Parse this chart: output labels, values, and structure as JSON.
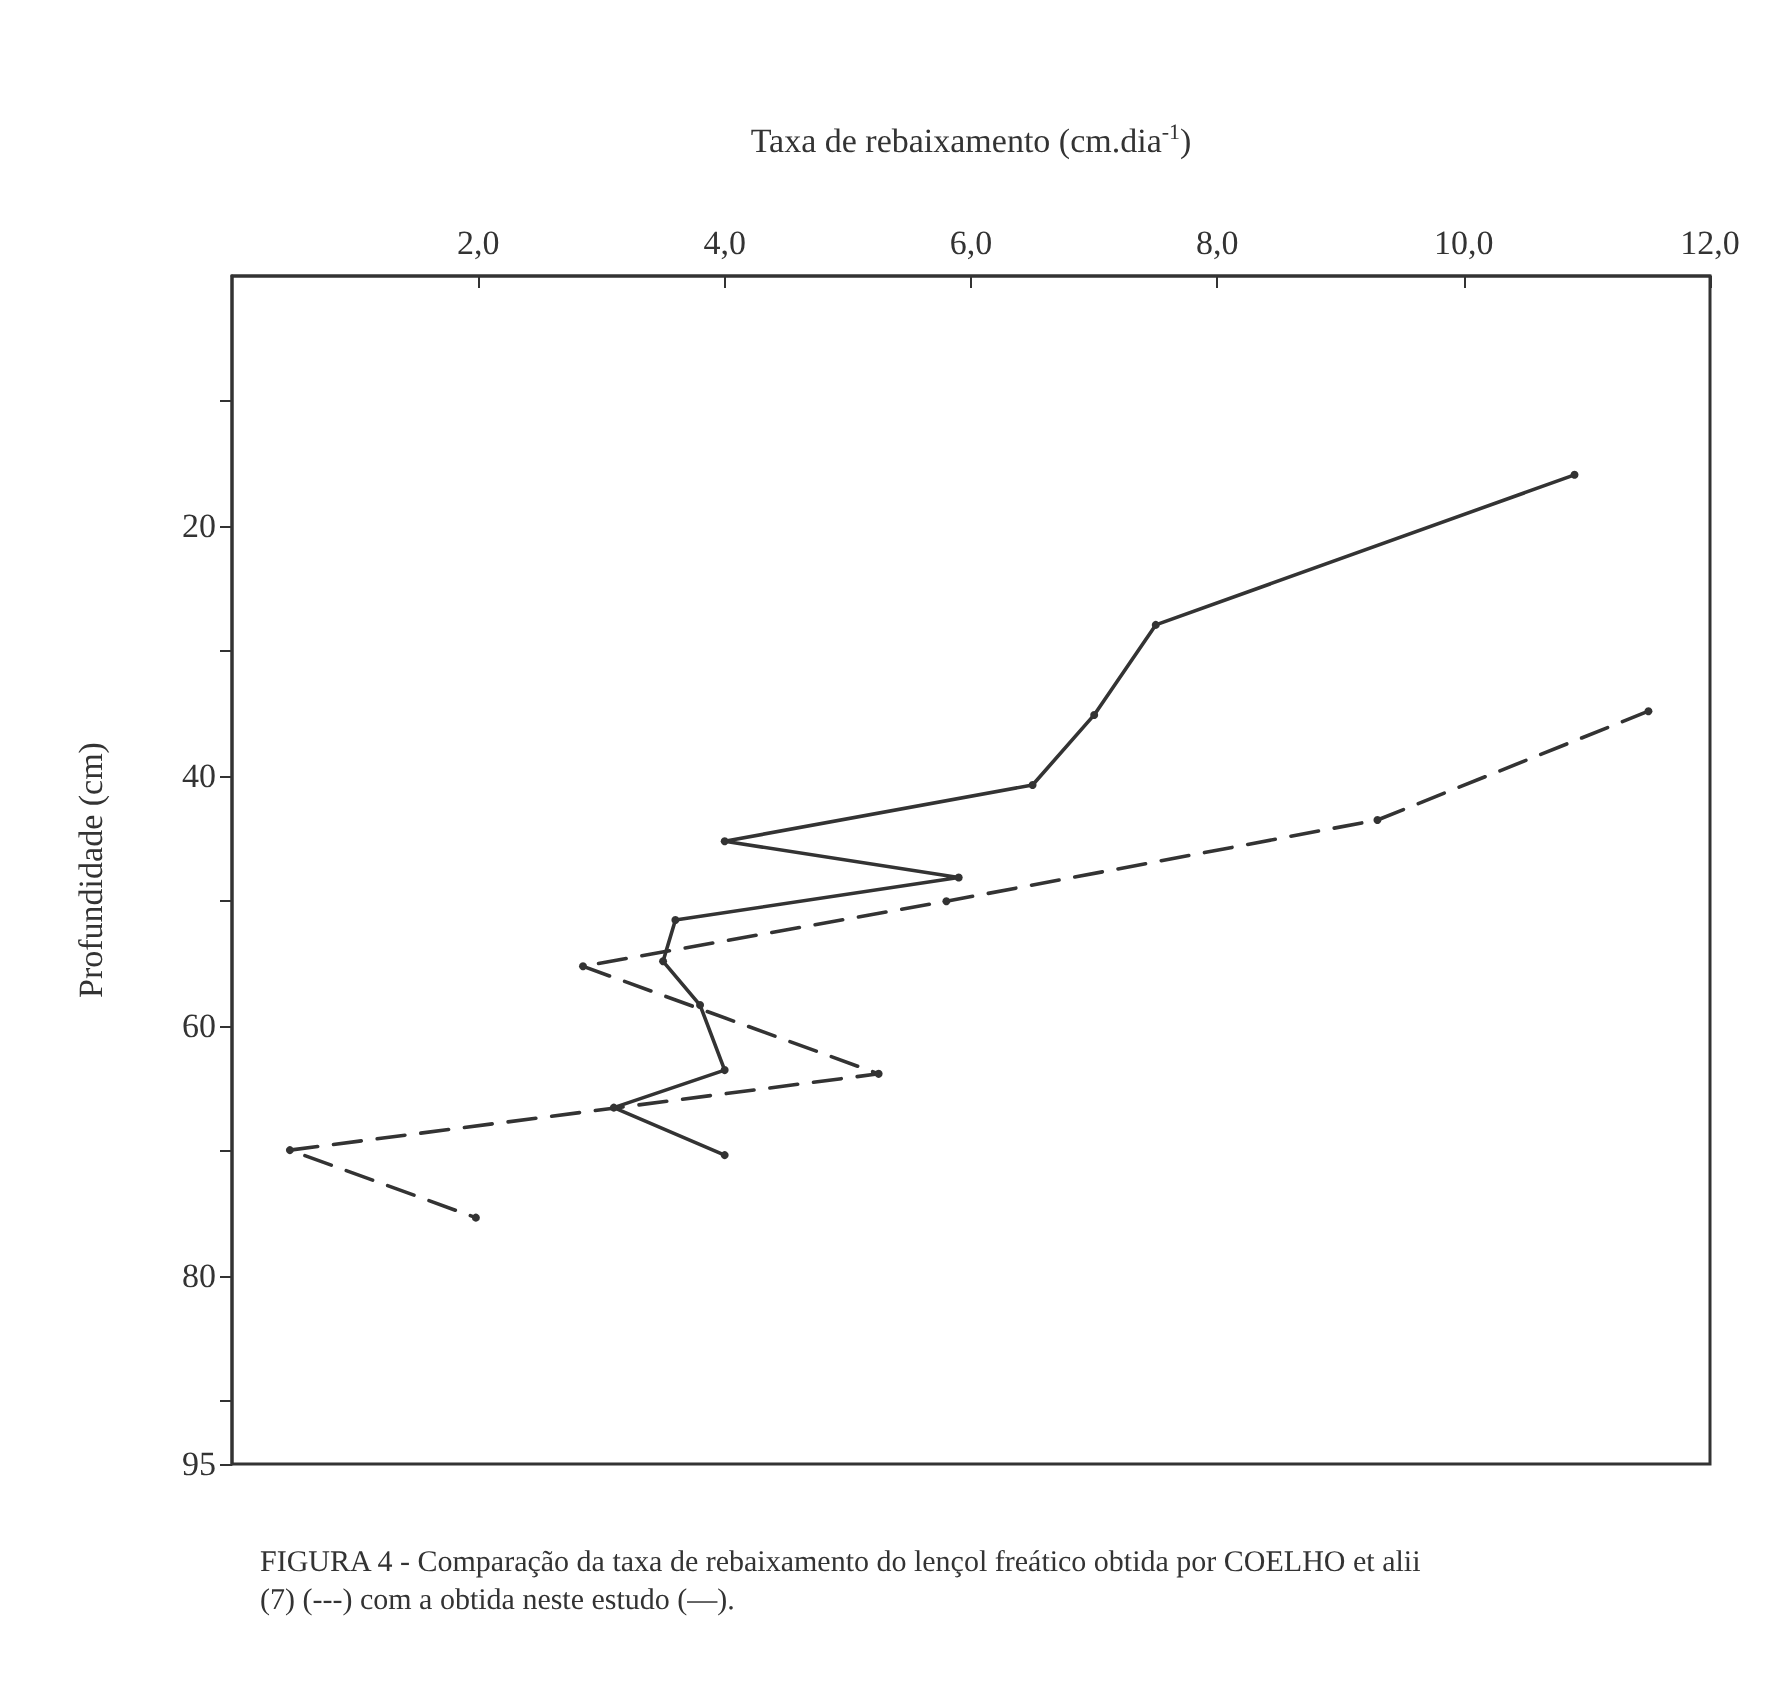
{
  "chart_data": {
    "type": "line",
    "xlabel": "Taxa de rebaixamento (cm.dia$^{-1}$)",
    "ylabel": "Profundidade (cm)",
    "annotations": [
      "FIGURA 4 - Comparação da taxa de rebaixamento do lençol freático obtida por COELHO et alii (7) (---) com a obtida neste estudo (—)."
    ],
    "xlim": [
      0,
      12
    ],
    "xticks": [
      {
        "value": 2,
        "label": "2,0"
      },
      {
        "value": 4,
        "label": "4,0"
      },
      {
        "value": 6,
        "label": "6,0"
      },
      {
        "value": 8,
        "label": "8,0"
      },
      {
        "value": 10,
        "label": "10,0"
      },
      {
        "value": 12,
        "label": "12,0"
      }
    ],
    "ylim": [
      95,
      0
    ],
    "yticks": [
      {
        "value": 10,
        "label": null
      },
      20,
      {
        "value": 30,
        "label": null
      },
      40,
      {
        "value": 50,
        "label": null
      },
      60,
      {
        "value": 70,
        "label": null
      },
      80,
      {
        "value": 90,
        "label": null
      },
      95
    ],
    "marker": "circle",
    "series": [
      {
        "color": "#333333",
        "line_style": "solid",
        "x": [
          10.9,
          7.5,
          7.0,
          6.5,
          4.0,
          5.9,
          3.6,
          3.5,
          3.8,
          4.0,
          3.1,
          4.0
        ],
        "values": [
          15.9,
          27.9,
          35.1,
          40.7,
          45.2,
          48.1,
          51.5,
          54.8,
          58.3,
          63.5,
          66.5,
          70.3
        ]
      },
      {
        "color": "#333333",
        "line_style": "dashed",
        "x": [
          11.5,
          9.3,
          5.8,
          2.85,
          5.25,
          0.47,
          1.98
        ],
        "values": [
          34.8,
          43.5,
          50.0,
          55.2,
          63.8,
          69.9,
          75.3
        ]
      }
    ]
  }
}
